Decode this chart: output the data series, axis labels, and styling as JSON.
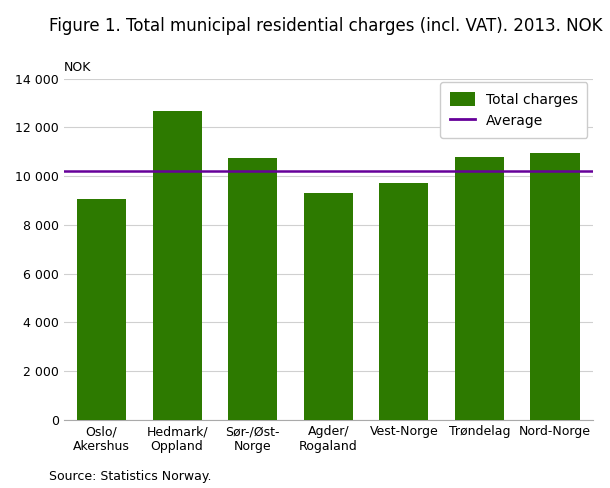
{
  "title": "Figure 1. Total municipal residential charges (incl. VAT). 2013. NOK",
  "nok_label": "NOK",
  "categories": [
    "Oslo/\nAkershus",
    "Hedmark/\nOppland",
    "Sør-/Øst-\nNorge",
    "Agder/\nRogaland",
    "Vest-Norge",
    "Trøndelag",
    "Nord-Norge"
  ],
  "values": [
    9050,
    12650,
    10750,
    9300,
    9700,
    10800,
    10950
  ],
  "average": 10200,
  "bar_color": "#2d7a00",
  "average_color": "#660099",
  "ylim": [
    0,
    14000
  ],
  "yticks": [
    0,
    2000,
    4000,
    6000,
    8000,
    10000,
    12000,
    14000
  ],
  "ytick_labels": [
    "0",
    "2 000",
    "4 000",
    "6 000",
    "8 000",
    "10 000",
    "12 000",
    "14 000"
  ],
  "legend_bar_label": "Total charges",
  "legend_line_label": "Average",
  "source": "Source: Statistics Norway.",
  "background_color": "#ffffff",
  "grid_color": "#d0d0d0",
  "title_fontsize": 12,
  "tick_fontsize": 9,
  "source_fontsize": 9,
  "legend_fontsize": 10
}
